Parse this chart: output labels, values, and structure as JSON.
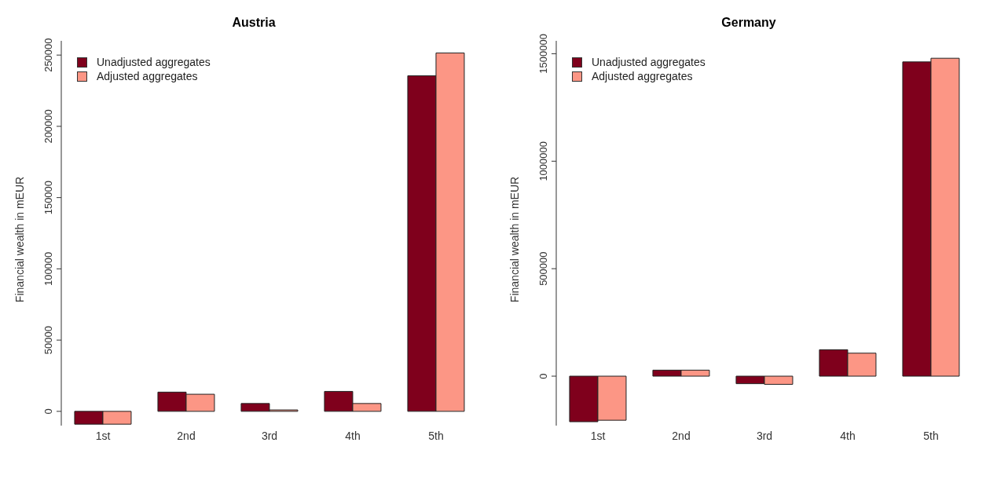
{
  "chart_data": [
    {
      "type": "bar",
      "title": "Austria",
      "ylabel": "Financial wealth in mEUR",
      "categories": [
        "1st",
        "2nd",
        "3rd",
        "4th",
        "5th"
      ],
      "series": [
        {
          "name": "Unadjusted aggregates",
          "color": "#7f001c",
          "values": [
            -9000,
            13500,
            5500,
            14000,
            235500
          ]
        },
        {
          "name": "Adjusted aggregates",
          "color": "#fc9685",
          "values": [
            -9000,
            12000,
            1000,
            5500,
            251500
          ]
        }
      ],
      "ylim": [
        -10000,
        260000
      ],
      "yticks": [
        0,
        50000,
        100000,
        150000,
        200000,
        250000
      ],
      "grid": false,
      "legend": "top left"
    },
    {
      "type": "bar",
      "title": "Germany",
      "ylabel": "Financial wealth in mEUR",
      "categories": [
        "1st",
        "2nd",
        "3rd",
        "4th",
        "5th"
      ],
      "series": [
        {
          "name": "Unadjusted aggregates",
          "color": "#7f001c",
          "values": [
            -212000,
            28000,
            -35000,
            123000,
            1462000
          ]
        },
        {
          "name": "Adjusted aggregates",
          "color": "#fc9685",
          "values": [
            -205000,
            28000,
            -38000,
            107000,
            1479000
          ]
        }
      ],
      "ylim": [
        -230000,
        1560000
      ],
      "yticks": [
        0,
        500000,
        1000000,
        1500000
      ],
      "grid": false,
      "legend": "top left"
    }
  ]
}
